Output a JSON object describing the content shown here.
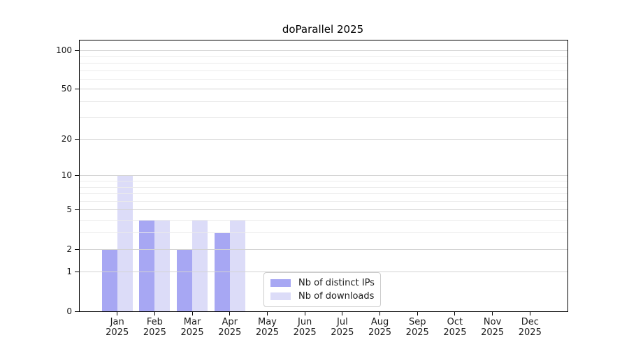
{
  "chart_data": {
    "type": "bar",
    "title": "doParallel 2025",
    "categories": [
      "Jan",
      "Feb",
      "Mar",
      "Apr",
      "May",
      "Jun",
      "Jul",
      "Aug",
      "Sep",
      "Oct",
      "Nov",
      "Dec"
    ],
    "x_tick_line2": "2025",
    "series": [
      {
        "name": "Nb of distinct IPs",
        "color": "#a7a7f3",
        "values": [
          2,
          4,
          2,
          3,
          0,
          0,
          0,
          0,
          0,
          0,
          0,
          0
        ]
      },
      {
        "name": "Nb of downloads",
        "color": "#dcdcf8",
        "values": [
          10,
          4,
          4,
          4,
          0,
          0,
          0,
          0,
          0,
          0,
          0,
          0
        ]
      }
    ],
    "yscale": "log1p",
    "ylim": [
      0,
      100
    ],
    "y_major_ticks": [
      0,
      1,
      2,
      5,
      10,
      20,
      50,
      100
    ],
    "y_minor_ticks": [
      3,
      4,
      6,
      7,
      8,
      9,
      30,
      40,
      60,
      70,
      80,
      90
    ],
    "grid": true,
    "grid_above_bars": true,
    "legend_position": "bottom-center-inside",
    "xlabel": "",
    "ylabel": ""
  },
  "colors": {
    "background": "#ffffff",
    "axis": "#000000",
    "grid_major": "#d3d3d3",
    "grid_minor": "#ebebeb",
    "text": "#1a1a1a",
    "legend_border": "#cccccc"
  }
}
